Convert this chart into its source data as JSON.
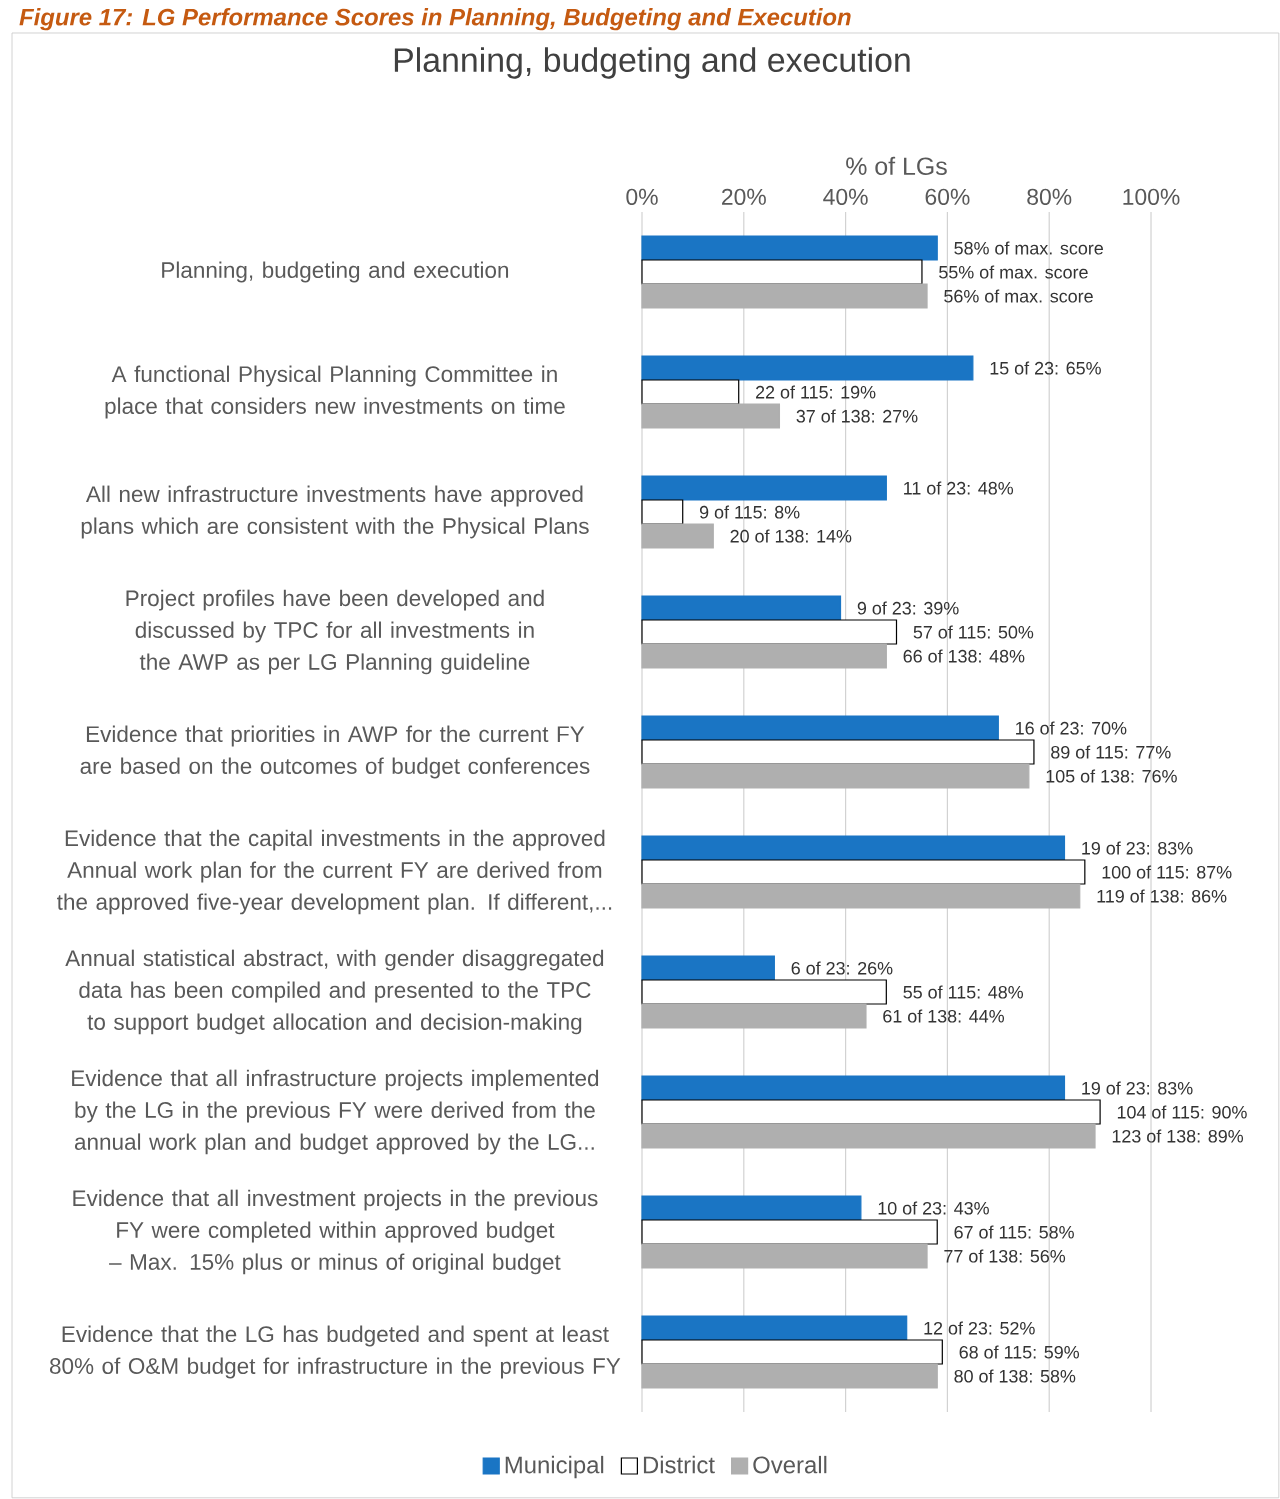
{
  "chart_data": {
    "type": "bar",
    "orientation": "horizontal",
    "title": "Planning, budgeting and execution",
    "xlabel": "% of LGs",
    "annotations": [
      "Figure 17: LG Performance Scores in Planning, Budgeting and Execution"
    ],
    "categories": [
      "Planning, budgeting and execution",
      "A functional Physical Planning Committee in place that considers new investments on time",
      "All new infrastructure investments have approved plans which are consistent with the Physical Plans",
      "Project profiles have been developed and discussed by TPC for all investments in the AWP as per LG Planning guideline",
      "Evidence that priorities in AWP for the current FY are based on the outcomes of budget conferences",
      "Evidence that the capital investments in the approved Annual work plan for the current FY are derived from the approved five-year development plan. If different,...",
      "Annual statistical abstract, with gender disaggregated data has been compiled and presented to the TPC to support budget allocation and decision-making",
      "Evidence that all infrastructure projects implemented by the LG in the previous FY were derived from the annual work plan and budget approved by the LG...",
      "Evidence that all investment projects in the previous FY were completed within approved budget – Max. 15% plus or minus of original budget",
      "Evidence that the LG has budgeted and spent at least 80% of O&M budget for infrastructure in the previous FY"
    ],
    "series": [
      {
        "name": "Municipal",
        "color": "#1a75c4",
        "values": [
          58,
          65,
          48,
          39,
          70,
          83,
          26,
          83,
          43,
          52
        ],
        "value_labels": [
          "58% of max. score",
          "15 of 23: 65%",
          "11 of 23: 48%",
          "9 of 23: 39%",
          "16 of 23: 70%",
          "19 of 23: 83%",
          "6 of 23: 26%",
          "19 of 23: 83%",
          "10 of 23: 43%",
          "12 of 23: 52%"
        ]
      },
      {
        "name": "District",
        "color": "#ffffff",
        "values": [
          55,
          19,
          8,
          50,
          77,
          87,
          48,
          90,
          58,
          59
        ],
        "value_labels": [
          "55% of max. score",
          "22 of 115: 19%",
          "9 of 115: 8%",
          "57 of 115: 50%",
          "89 of 115: 77%",
          "100 of 115: 87%",
          "55 of 115: 48%",
          "104 of 115: 90%",
          "67 of 115: 58%",
          "68 of 115: 59%"
        ]
      },
      {
        "name": "Overall",
        "color": "#afafaf",
        "values": [
          56,
          27,
          14,
          48,
          76,
          86,
          44,
          89,
          56,
          58
        ],
        "value_labels": [
          "56% of max. score",
          "37 of 138: 27%",
          "20 of 138: 14%",
          "66 of 138: 48%",
          "105 of 138: 76%",
          "119 of 138: 86%",
          "61 of 138: 44%",
          "123 of 138: 89%",
          "77 of 138: 56%",
          "80 of 138: 58%"
        ]
      }
    ],
    "xlim": [
      0,
      100
    ],
    "xticks": [
      {
        "value": 0,
        "label": "0%"
      },
      {
        "value": 20,
        "label": "20%"
      },
      {
        "value": 40,
        "label": "40%"
      },
      {
        "value": 60,
        "label": "60%"
      },
      {
        "value": 80,
        "label": "80%"
      },
      {
        "value": 100,
        "label": "100%"
      }
    ],
    "grid": "x",
    "legend": "bottom"
  }
}
